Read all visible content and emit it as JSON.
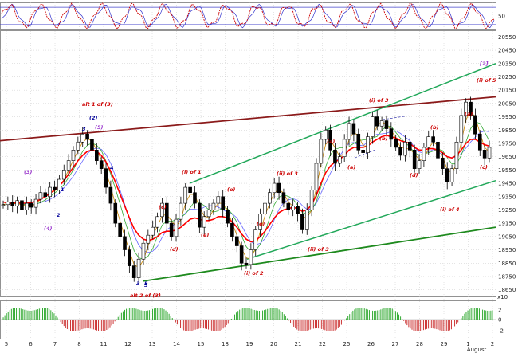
{
  "colors": {
    "background": "#ffffff",
    "grid": "#c8c8c8",
    "channel_green": "#22a85a",
    "trend_darkred": "#8b1a1a",
    "lower_trend_green": "#1e8a1e",
    "ma_red": "#ff0000",
    "ma_blue": "#6666ff",
    "ma_green": "#33aa33",
    "ma_orange": "#cc8800",
    "wave_red": "#cc0000",
    "wave_purple": "#9933cc",
    "wave_blue": "#000099",
    "osc_red": "#cc0000",
    "osc_blue": "#3333cc",
    "hist_up": "#33aa33",
    "hist_down": "#cc3333"
  },
  "top_panel": {
    "level_label": "50"
  },
  "bottom_panel": {
    "ticks": [
      "2",
      "0",
      "-2"
    ]
  },
  "chart_data": {
    "type": "line",
    "title": "",
    "xlabel": "",
    "ylabel": "",
    "ylim": [
      18600,
      20600
    ],
    "y_ticks": [
      20550,
      20450,
      20350,
      20250,
      20150,
      20050,
      19950,
      19850,
      19750,
      19650,
      19550,
      19450,
      19350,
      19250,
      19150,
      19050,
      18950,
      18850,
      18750,
      18650
    ],
    "y_tick_labels": [
      "20550",
      "20450",
      "20350",
      "20250",
      "20150",
      "20050",
      "19950",
      "19850",
      "19750",
      "19650",
      "19550",
      "19450",
      "19350",
      "19250",
      "19150",
      "19050",
      "18950",
      "18850",
      "18750",
      "18650"
    ],
    "x_tick_labels": [
      "5",
      "6",
      "7",
      "8",
      "11",
      "12",
      "13",
      "14",
      "15",
      "18",
      "19",
      "20",
      "21",
      "22",
      "25",
      "26",
      "27",
      "28",
      "29",
      "1",
      "2"
    ],
    "x_month_label": "August",
    "scale_label": "x10",
    "series": [
      {
        "values": [
          19290,
          19310,
          19280,
          19320,
          19250,
          19300,
          19270,
          19330,
          19380,
          19350,
          19420,
          19400,
          19480,
          19550,
          19620,
          19700,
          19760,
          19820,
          19780,
          19700,
          19620,
          19560,
          19420,
          19300,
          19150,
          19050,
          18950,
          18830,
          18740,
          18880,
          19000,
          19060,
          19120,
          19200,
          19300,
          19150,
          19050,
          19180,
          19300,
          19420,
          19380,
          19300,
          19120,
          19200,
          19250,
          19300,
          19350,
          19250,
          19150,
          19050,
          18980,
          18850,
          18840,
          18950,
          19100,
          19220,
          19300,
          19380,
          19450,
          19380,
          19300,
          19250,
          19280,
          19220,
          19100,
          19250,
          19400,
          19600,
          19780,
          19850,
          19700,
          19600,
          19650,
          19780,
          19900,
          19820,
          19700,
          19680,
          19800,
          19950,
          19880,
          19920,
          19860,
          19780,
          19720,
          19660,
          19760,
          19700,
          19560,
          19620,
          19720,
          19800,
          19760,
          19640,
          19560,
          19460,
          19560,
          19760,
          19960,
          20060,
          19960,
          19820,
          19700,
          19640,
          19720
        ]
      },
      {
        "values": [
          19310,
          19300,
          19300,
          19305,
          19300,
          19300,
          19305,
          19315,
          19330,
          19350,
          19375,
          19400,
          19430,
          19470,
          19520,
          19570,
          19620,
          19660,
          19690,
          19700,
          19690,
          19660,
          19610,
          19540,
          19460,
          19370,
          19280,
          19190,
          19110,
          19060,
          19030,
          19020,
          19030,
          19050,
          19080,
          19090,
          19090,
          19100,
          19120,
          19150,
          19180,
          19190,
          19180,
          19170,
          19170,
          19180,
          19200,
          19200,
          19190,
          19160,
          19120,
          19070,
          19030,
          19010,
          19020,
          19050,
          19090,
          19140,
          19190,
          19230,
          19250,
          19260,
          19270,
          19260,
          19240,
          19250,
          19290,
          19360,
          19450,
          19530,
          19580,
          19610,
          19630,
          19660,
          19700,
          19720,
          19720,
          19720,
          19730,
          19760,
          19780,
          19800,
          19810,
          19800,
          19790,
          19770,
          19760,
          19750,
          19720,
          19700,
          19700,
          19710,
          19710,
          19700,
          19680,
          19650,
          19640,
          19660,
          19700,
          19750,
          19780,
          19780,
          19760,
          19740,
          19730
        ]
      }
    ],
    "annotations": [
      "alt 1 of (3)",
      "alt 2 of (3)",
      "(2)",
      "(3)",
      "(4)",
      "(5)",
      "[2]",
      "(i) of 1",
      "(i) of 2",
      "(i) of 3",
      "(i) of 4",
      "(i) of 5",
      "(ii) of 3",
      "(ii) of 3",
      "(a)",
      "(b)",
      "(c)",
      "(d)",
      "(e)",
      "1",
      "2",
      "3",
      "4",
      "5"
    ]
  }
}
